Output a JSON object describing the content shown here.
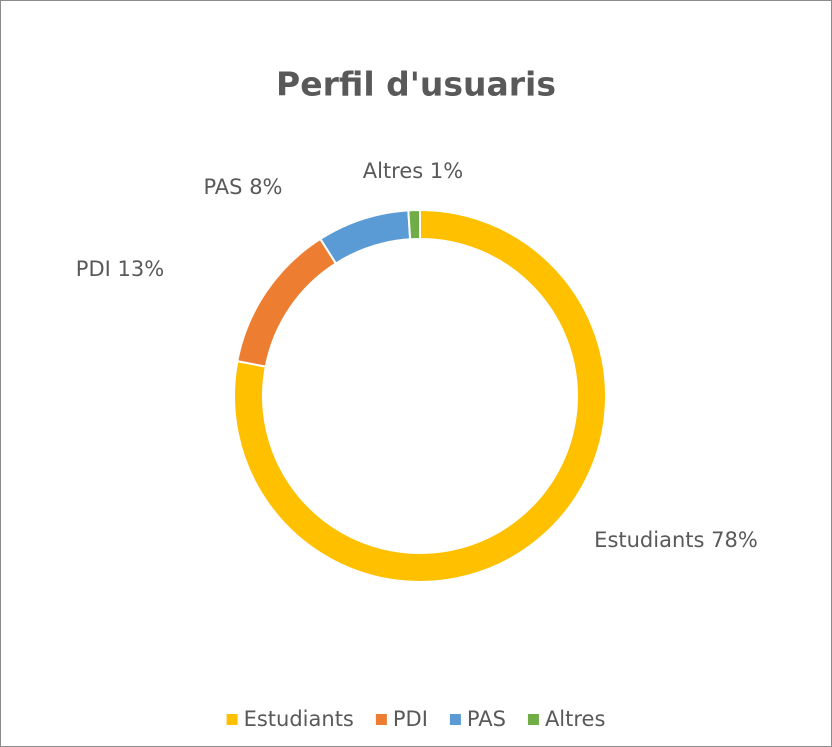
{
  "chart_data": {
    "type": "donut",
    "title": "Perfil d'usuaris",
    "categories": [
      "Estudiants",
      "PDI",
      "PAS",
      "Altres"
    ],
    "values": [
      78,
      13,
      8,
      1
    ],
    "value_labels": [
      "78%",
      "13%",
      "8%",
      "1%"
    ],
    "colors": [
      "#FFC000",
      "#ED7D31",
      "#5B9BD5",
      "#70AD47"
    ],
    "legend": "bottom"
  }
}
